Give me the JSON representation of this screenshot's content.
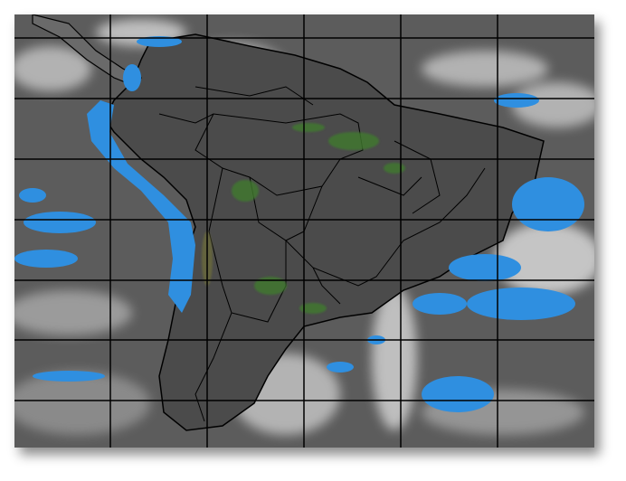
{
  "map": {
    "subject": "",
    "colors": {
      "background": "#5a5a5a",
      "land": "#4a4a4a",
      "cold_cloud_tops": "#2f8fe0",
      "vegetation": "#3f7a2e",
      "cloud": "#d8d8d8",
      "borders": "#000000",
      "grid": "#000000"
    },
    "grid": {
      "meridians": 5,
      "parallels": 7
    }
  }
}
